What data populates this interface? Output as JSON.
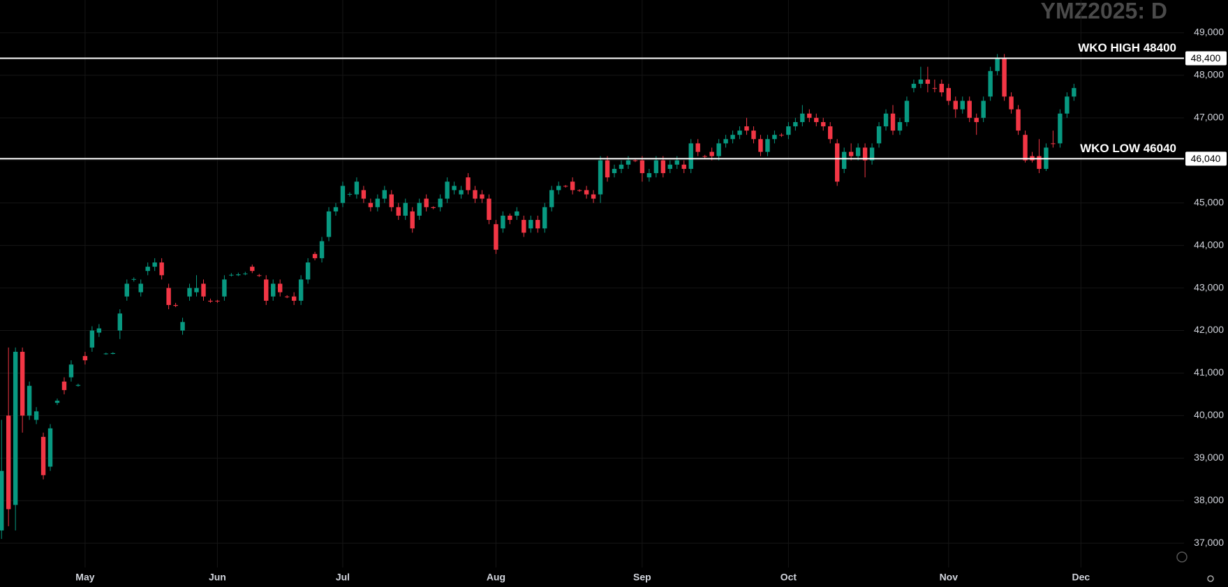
{
  "chart_data": {
    "type": "candlestick",
    "title": "YMZ2025: D",
    "categories": [
      null,
      null,
      null,
      null,
      null,
      null,
      null,
      null,
      null,
      null,
      null,
      null,
      "May",
      null,
      null,
      null,
      null,
      null,
      null,
      null,
      null,
      null,
      null,
      null,
      null,
      null,
      null,
      null,
      null,
      null,
      null,
      "Jun",
      null,
      null,
      null,
      null,
      null,
      null,
      null,
      null,
      null,
      null,
      null,
      null,
      null,
      null,
      null,
      null,
      null,
      "Jul",
      null,
      null,
      null,
      null,
      null,
      null,
      null,
      null,
      null,
      null,
      null,
      null,
      null,
      null,
      null,
      null,
      null,
      null,
      null,
      null,
      null,
      "Aug",
      null,
      null,
      null,
      null,
      null,
      null,
      null,
      null,
      null,
      null,
      null,
      null,
      null,
      null,
      null,
      null,
      null,
      null,
      null,
      null,
      "Sep",
      null,
      null,
      null,
      null,
      null,
      null,
      null,
      null,
      null,
      null,
      null,
      null,
      null,
      null,
      null,
      null,
      null,
      null,
      null,
      null,
      "Oct",
      null,
      null,
      null,
      null,
      null,
      null,
      null,
      null,
      null,
      null,
      null,
      null,
      null,
      null,
      null,
      null,
      null,
      null,
      null,
      null,
      null,
      null,
      "Nov",
      null,
      null,
      null,
      null,
      null,
      null,
      null,
      null,
      null,
      null,
      null,
      null,
      null,
      null,
      null,
      null,
      null,
      null,
      "Dec"
    ],
    "open": [
      37300,
      40000,
      37900,
      41500,
      40000,
      39900,
      39500,
      38800,
      40300,
      40800,
      40900,
      40700,
      41400,
      41600,
      41950,
      41450,
      41450,
      42000,
      42800,
      43200,
      42900,
      43400,
      43500,
      43600,
      43000,
      42600,
      42000,
      42800,
      42900,
      43100,
      42700,
      42700,
      42800,
      43300,
      43300,
      43330,
      43500,
      43300,
      43200,
      42800,
      43100,
      42800,
      42800,
      42700,
      43200,
      43800,
      43700,
      44200,
      44800,
      45000,
      45200,
      45200,
      45300,
      45000,
      44900,
      45100,
      45200,
      44900,
      44700,
      44800,
      44700,
      45100,
      44900,
      44900,
      45100,
      45300,
      45200,
      45600,
      45300,
      45200,
      45100,
      44500,
      44400,
      44700,
      44700,
      44600,
      44400,
      44600,
      44400,
      44900,
      45300,
      45400,
      45500,
      45300,
      45300,
      45200,
      45200,
      46000,
      45700,
      45800,
      45900,
      46000,
      46000,
      45600,
      45700,
      46000,
      45800,
      45900,
      45900,
      45800,
      46400,
      46100,
      46200,
      46100,
      46400,
      46500,
      46600,
      46800,
      46700,
      46500,
      46200,
      46500,
      46600,
      46600,
      46800,
      46900,
      47100,
      47000,
      46900,
      46800,
      46400,
      45800,
      46200,
      46100,
      46300,
      46000,
      46400,
      46800,
      47100,
      46700,
      46900,
      47700,
      47800,
      47900,
      47700,
      47800,
      47700,
      47400,
      47200,
      47400,
      47000,
      47000,
      47500,
      48100,
      48400,
      47500,
      47200,
      46600,
      46100,
      46100,
      45800,
      46400,
      46400,
      47100,
      47500,
      null
    ],
    "high": [
      39900,
      41600,
      41600,
      41600,
      40800,
      40200,
      39600,
      39800,
      40400,
      40900,
      41300,
      40750,
      41500,
      42100,
      42150,
      41480,
      41490,
      42500,
      43200,
      43250,
      43200,
      43600,
      43700,
      43700,
      43100,
      42650,
      42300,
      43100,
      43300,
      43200,
      42750,
      42720,
      43300,
      43350,
      43360,
      43380,
      43550,
      43330,
      43300,
      43200,
      43200,
      42830,
      42900,
      43300,
      43700,
      43850,
      44200,
      44900,
      45000,
      45500,
      45250,
      45600,
      45400,
      45100,
      45200,
      45400,
      45300,
      45000,
      45100,
      44900,
      45100,
      45200,
      44920,
      45200,
      45600,
      45500,
      45400,
      45700,
      45400,
      45300,
      45200,
      44600,
      44800,
      44750,
      44900,
      44700,
      44700,
      44700,
      45000,
      45400,
      45500,
      45420,
      45600,
      45320,
      45400,
      45300,
      46100,
      46100,
      45900,
      46000,
      46100,
      46020,
      46100,
      45800,
      46100,
      46100,
      46000,
      46100,
      46000,
      46500,
      46500,
      46130,
      46300,
      46500,
      46600,
      46700,
      46800,
      47000,
      46800,
      46600,
      46600,
      46700,
      46640,
      46900,
      47000,
      47300,
      47200,
      47100,
      47000,
      46900,
      46500,
      46300,
      46400,
      46400,
      46400,
      46400,
      46900,
      47200,
      47300,
      47000,
      47500,
      47900,
      48200,
      48200,
      47900,
      47900,
      47800,
      47500,
      47500,
      47500,
      47100,
      47500,
      48200,
      48500,
      48500,
      47600,
      47300,
      46700,
      46200,
      46500,
      46400,
      46700,
      47200,
      47600,
      47800,
      null
    ],
    "low": [
      37100,
      37400,
      37300,
      39600,
      39900,
      39800,
      38500,
      38700,
      40250,
      40500,
      40800,
      40680,
      41200,
      41500,
      41850,
      41430,
      41440,
      41800,
      42700,
      43150,
      42800,
      43300,
      43400,
      43200,
      42500,
      42550,
      41900,
      42700,
      42800,
      42700,
      42650,
      42650,
      42700,
      43270,
      43280,
      43300,
      43350,
      43260,
      42600,
      42700,
      42800,
      42760,
      42600,
      42600,
      43100,
      43650,
      43600,
      44100,
      44700,
      44900,
      45150,
      45100,
      45000,
      44800,
      44800,
      45000,
      44800,
      44600,
      44600,
      44300,
      44600,
      44800,
      44850,
      44800,
      45000,
      45200,
      45100,
      45200,
      45000,
      45000,
      44500,
      43800,
      44300,
      44500,
      44600,
      44200,
      44300,
      44300,
      44300,
      44800,
      45200,
      45360,
      45200,
      45260,
      45100,
      45000,
      45000,
      45500,
      45600,
      45700,
      45800,
      45960,
      45500,
      45500,
      45600,
      45600,
      45700,
      45800,
      45700,
      45700,
      46100,
      46050,
      46000,
      46000,
      46300,
      46400,
      46500,
      46600,
      46400,
      46100,
      46100,
      46400,
      46550,
      46500,
      46700,
      46800,
      46900,
      46800,
      46700,
      46400,
      45400,
      45700,
      46000,
      46000,
      45600,
      45900,
      46300,
      46700,
      46600,
      46600,
      46800,
      47600,
      47700,
      47600,
      47600,
      47500,
      47300,
      47000,
      47100,
      46900,
      46600,
      46900,
      47400,
      48000,
      47400,
      47100,
      46600,
      45950,
      45950,
      45700,
      45750,
      46300,
      46300,
      47000,
      47400,
      null
    ],
    "close": [
      38700,
      37800,
      41500,
      40000,
      40700,
      40100,
      38600,
      39700,
      40350,
      40600,
      41200,
      40720,
      41300,
      42000,
      42050,
      41460,
      41470,
      42400,
      43100,
      43210,
      43100,
      43500,
      43600,
      43300,
      42600,
      42580,
      42200,
      43000,
      43000,
      42800,
      42680,
      42690,
      43200,
      43310,
      43320,
      43340,
      43400,
      43290,
      42700,
      43100,
      42900,
      42790,
      42700,
      43200,
      43600,
      43700,
      44100,
      44800,
      44900,
      45400,
      45210,
      45500,
      45100,
      44900,
      45100,
      45300,
      44900,
      44700,
      45000,
      44400,
      45000,
      44900,
      44880,
      45100,
      45500,
      45400,
      45300,
      45300,
      45100,
      45100,
      44600,
      43900,
      44700,
      44600,
      44800,
      44300,
      44600,
      44400,
      44900,
      45300,
      45400,
      45390,
      45300,
      45290,
      45200,
      45100,
      46000,
      45600,
      45800,
      45900,
      46000,
      45990,
      45700,
      45700,
      46000,
      45700,
      45900,
      46000,
      45800,
      46400,
      46200,
      46090,
      46100,
      46400,
      46500,
      46600,
      46700,
      46700,
      46500,
      46200,
      46500,
      46600,
      46590,
      46800,
      46900,
      47100,
      47000,
      46900,
      46800,
      46500,
      45500,
      46200,
      46100,
      46300,
      46000,
      46300,
      46800,
      47100,
      46700,
      46900,
      47400,
      47800,
      47900,
      47800,
      47690,
      47600,
      47400,
      47200,
      47400,
      47000,
      46900,
      47400,
      48100,
      48400,
      47500,
      47200,
      46700,
      46000,
      46000,
      45800,
      46300,
      46390,
      47100,
      47500,
      47700,
      null
    ],
    "up_color": "#089981",
    "down_color": "#f23645",
    "ylim": [
      36430,
      49770
    ],
    "yticks": [
      {
        "value": 37000,
        "label": "37,000"
      },
      {
        "value": 38000,
        "label": "38,000"
      },
      {
        "value": 39000,
        "label": "39,000"
      },
      {
        "value": 40000,
        "label": "40,000"
      },
      {
        "value": 41000,
        "label": "41,000"
      },
      {
        "value": 42000,
        "label": "42,000"
      },
      {
        "value": 43000,
        "label": "43,000"
      },
      {
        "value": 44000,
        "label": "44,000"
      },
      {
        "value": 45000,
        "label": "45,000"
      },
      {
        "value": 46000,
        "label": "46,000"
      },
      {
        "value": 47000,
        "label": "47,000"
      },
      {
        "value": 48000,
        "label": "48,000"
      },
      {
        "value": 49000,
        "label": "49,000"
      }
    ],
    "grid": true,
    "lines": [
      {
        "value": 48400,
        "label": "WKO HIGH 48400",
        "price_label": "48,400",
        "color": "#ffffff"
      },
      {
        "value": 46040,
        "label": "WKO LOW 46040",
        "price_label": "46,040",
        "color": "#ffffff"
      }
    ]
  }
}
